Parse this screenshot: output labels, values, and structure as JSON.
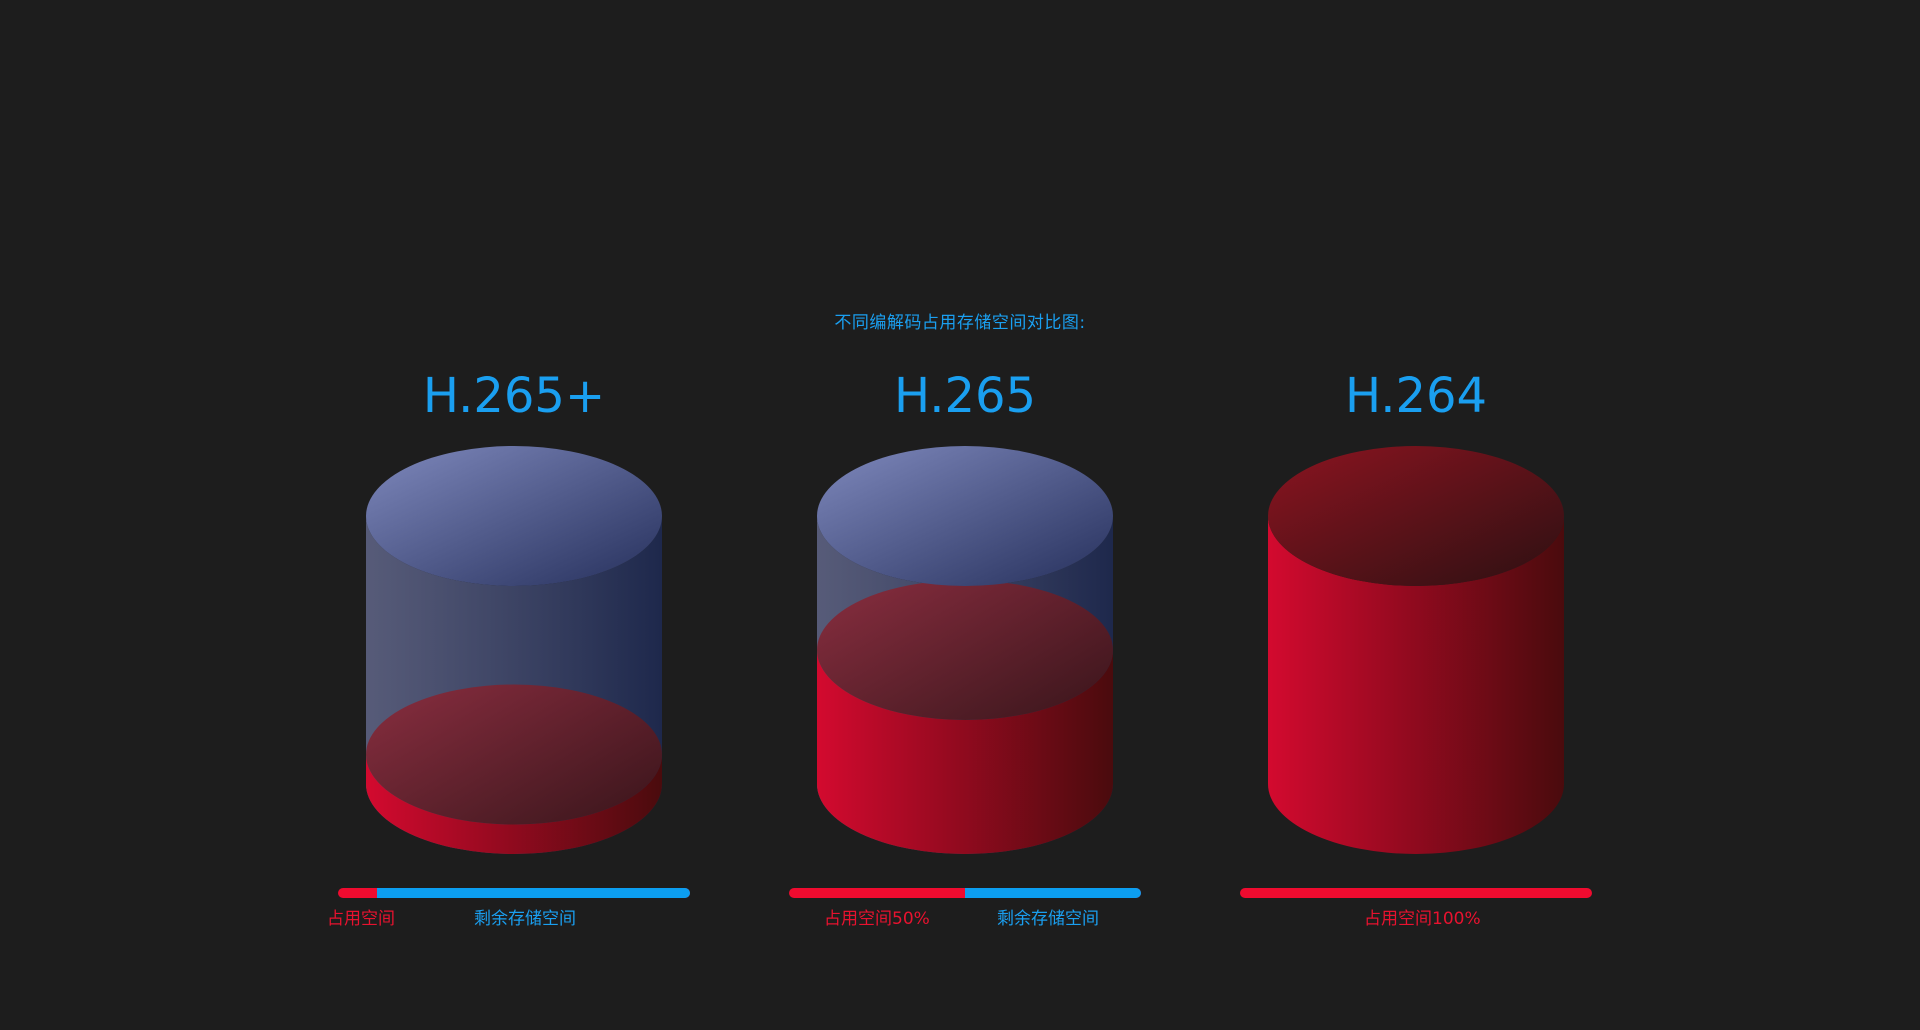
{
  "subtitle": "不同编解码占用存储空间对比图:",
  "colors": {
    "background": "#1d1d1d",
    "accent_blue": "#1a9ff0",
    "used_red": "#ef0b2f"
  },
  "codecs": [
    {
      "label": "H.265+",
      "used_fraction": 0.11,
      "used_text": "占用空间",
      "remain_text": "剩余存储空间"
    },
    {
      "label": "H.265",
      "used_fraction": 0.5,
      "used_text": "占用空间50%",
      "remain_text": "剩余存储空间"
    },
    {
      "label": "H.264",
      "used_fraction": 1.0,
      "used_text": "占用空间100%",
      "remain_text": ""
    }
  ]
}
